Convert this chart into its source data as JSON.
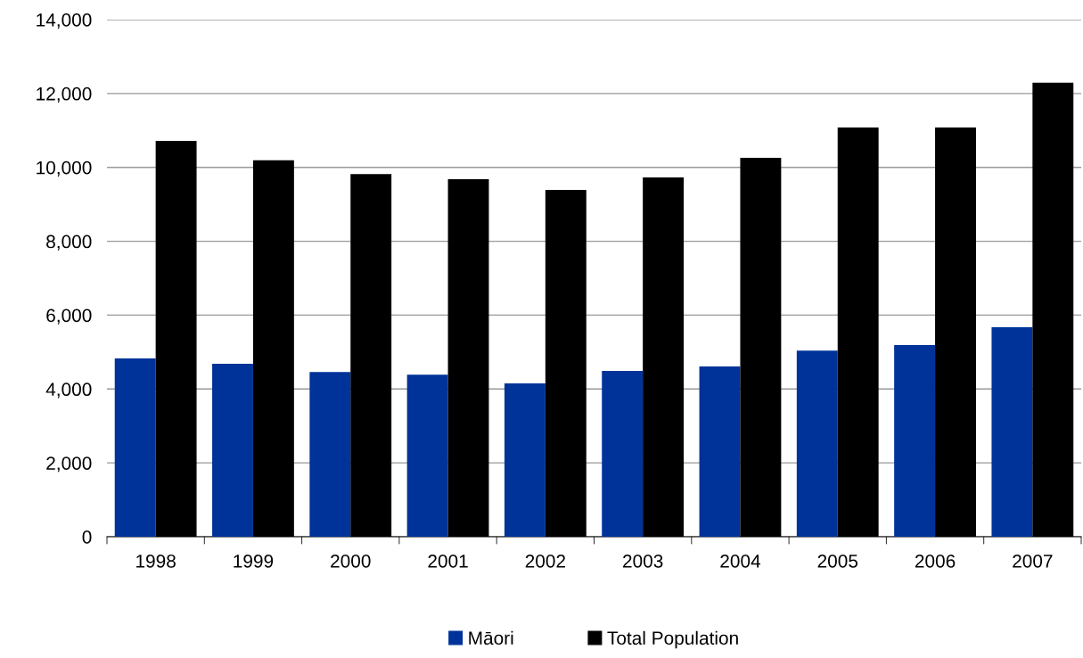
{
  "chart_data": {
    "type": "bar",
    "categories": [
      "1998",
      "1999",
      "2000",
      "2001",
      "2002",
      "2003",
      "2004",
      "2005",
      "2006",
      "2007"
    ],
    "series": [
      {
        "name": "Māori",
        "color": "#003399",
        "values": [
          4830,
          4680,
          4460,
          4390,
          4150,
          4490,
          4610,
          5040,
          5190,
          5670
        ]
      },
      {
        "name": "Total Population",
        "color": "#000000",
        "values": [
          10720,
          10190,
          9820,
          9680,
          9390,
          9730,
          10260,
          11080,
          11080,
          12290
        ]
      }
    ],
    "ylim": [
      0,
      14000
    ],
    "yticks": [
      {
        "value": 0,
        "label": "0"
      },
      {
        "value": 2000,
        "label": "2,000"
      },
      {
        "value": 4000,
        "label": "4,000"
      },
      {
        "value": 6000,
        "label": "6,000"
      },
      {
        "value": 8000,
        "label": "8,000"
      },
      {
        "value": 10000,
        "label": "10,000"
      },
      {
        "value": 12000,
        "label": "12,000"
      },
      {
        "value": 14000,
        "label": "14,000"
      }
    ],
    "grid": "y",
    "legend": "bottom"
  }
}
